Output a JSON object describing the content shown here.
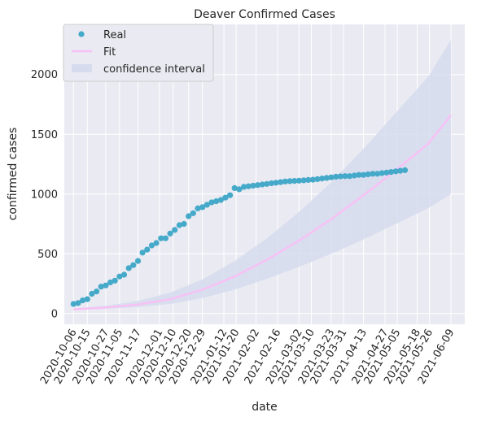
{
  "chart_data": {
    "type": "scatter",
    "title": "Deaver Confirmed Cases",
    "xlabel": "date",
    "ylabel": "confirmed cases",
    "x_ticks": [
      "2020-10-06",
      "2020-10-15",
      "2020-10-27",
      "2020-11-05",
      "2020-11-17",
      "2020-12-01",
      "2020-12-10",
      "2020-12-20",
      "2020-12-29",
      "2021-01-12",
      "2021-01-20",
      "2021-02-02",
      "2021-02-16",
      "2021-03-02",
      "2021-03-10",
      "2021-03-23",
      "2021-03-31",
      "2021-04-13",
      "2021-04-27",
      "2021-05-05",
      "2021-05-18",
      "2021-05-26",
      "2021-06-09"
    ],
    "y_ticks": [
      0,
      500,
      1000,
      1500,
      2000
    ],
    "xlim": [
      "2020-09-30",
      "2021-06-18"
    ],
    "ylim": [
      -90,
      2420
    ],
    "grid": true,
    "legend_position": "top-left",
    "colors": {
      "real": "#45a9c9",
      "fit": "#f7c1f5",
      "band": "#d6dcee",
      "background": "#eaeaf2",
      "grid": "#ffffff"
    },
    "legend": [
      "Real",
      "Fit",
      "confidence interval"
    ],
    "series": [
      {
        "name": "Real",
        "kind": "scatter",
        "points": [
          [
            "2020-10-06",
            80
          ],
          [
            "2020-10-09",
            88
          ],
          [
            "2020-10-12",
            110
          ],
          [
            "2020-10-15",
            120
          ],
          [
            "2020-10-18",
            165
          ],
          [
            "2020-10-21",
            185
          ],
          [
            "2020-10-24",
            225
          ],
          [
            "2020-10-27",
            235
          ],
          [
            "2020-10-30",
            260
          ],
          [
            "2020-11-02",
            275
          ],
          [
            "2020-11-05",
            310
          ],
          [
            "2020-11-08",
            325
          ],
          [
            "2020-11-11",
            380
          ],
          [
            "2020-11-14",
            405
          ],
          [
            "2020-11-17",
            440
          ],
          [
            "2020-11-20",
            510
          ],
          [
            "2020-11-23",
            535
          ],
          [
            "2020-11-26",
            570
          ],
          [
            "2020-11-29",
            590
          ],
          [
            "2020-12-02",
            630
          ],
          [
            "2020-12-05",
            630
          ],
          [
            "2020-12-08",
            670
          ],
          [
            "2020-12-11",
            700
          ],
          [
            "2020-12-14",
            740
          ],
          [
            "2020-12-17",
            750
          ],
          [
            "2020-12-20",
            815
          ],
          [
            "2020-12-23",
            840
          ],
          [
            "2020-12-26",
            880
          ],
          [
            "2020-12-29",
            890
          ],
          [
            "2021-01-01",
            910
          ],
          [
            "2021-01-04",
            930
          ],
          [
            "2021-01-07",
            940
          ],
          [
            "2021-01-10",
            950
          ],
          [
            "2021-01-13",
            970
          ],
          [
            "2021-01-16",
            990
          ],
          [
            "2021-01-19",
            1050
          ],
          [
            "2021-01-22",
            1040
          ],
          [
            "2021-01-25",
            1060
          ],
          [
            "2021-01-28",
            1065
          ],
          [
            "2021-01-31",
            1070
          ],
          [
            "2021-02-03",
            1075
          ],
          [
            "2021-02-06",
            1080
          ],
          [
            "2021-02-09",
            1085
          ],
          [
            "2021-02-12",
            1090
          ],
          [
            "2021-02-15",
            1095
          ],
          [
            "2021-02-18",
            1100
          ],
          [
            "2021-02-21",
            1105
          ],
          [
            "2021-02-24",
            1108
          ],
          [
            "2021-02-27",
            1110
          ],
          [
            "2021-03-02",
            1112
          ],
          [
            "2021-03-05",
            1115
          ],
          [
            "2021-03-08",
            1118
          ],
          [
            "2021-03-11",
            1120
          ],
          [
            "2021-03-14",
            1125
          ],
          [
            "2021-03-17",
            1130
          ],
          [
            "2021-03-20",
            1135
          ],
          [
            "2021-03-23",
            1140
          ],
          [
            "2021-03-26",
            1145
          ],
          [
            "2021-03-29",
            1148
          ],
          [
            "2021-04-01",
            1150
          ],
          [
            "2021-04-04",
            1150
          ],
          [
            "2021-04-07",
            1155
          ],
          [
            "2021-04-10",
            1160
          ],
          [
            "2021-04-13",
            1160
          ],
          [
            "2021-04-16",
            1165
          ],
          [
            "2021-04-19",
            1170
          ],
          [
            "2021-04-22",
            1170
          ],
          [
            "2021-04-25",
            1175
          ],
          [
            "2021-04-28",
            1180
          ],
          [
            "2021-05-01",
            1185
          ],
          [
            "2021-05-04",
            1190
          ],
          [
            "2021-05-07",
            1195
          ],
          [
            "2021-05-10",
            1200
          ]
        ]
      },
      {
        "name": "Fit",
        "kind": "line",
        "points": [
          [
            "2020-10-06",
            35
          ],
          [
            "2020-10-27",
            50
          ],
          [
            "2020-11-17",
            75
          ],
          [
            "2020-12-08",
            120
          ],
          [
            "2020-12-29",
            200
          ],
          [
            "2021-01-19",
            310
          ],
          [
            "2021-02-09",
            450
          ],
          [
            "2021-03-02",
            610
          ],
          [
            "2021-03-23",
            790
          ],
          [
            "2021-04-13",
            990
          ],
          [
            "2021-05-04",
            1200
          ],
          [
            "2021-05-25",
            1420
          ],
          [
            "2021-06-09",
            1660
          ]
        ]
      },
      {
        "name": "confidence interval",
        "kind": "band",
        "upper": [
          [
            "2020-10-06",
            40
          ],
          [
            "2020-10-27",
            65
          ],
          [
            "2020-11-17",
            105
          ],
          [
            "2020-12-08",
            175
          ],
          [
            "2020-12-29",
            285
          ],
          [
            "2021-01-19",
            440
          ],
          [
            "2021-02-09",
            630
          ],
          [
            "2021-03-02",
            850
          ],
          [
            "2021-03-23",
            1100
          ],
          [
            "2021-04-13",
            1380
          ],
          [
            "2021-05-04",
            1680
          ],
          [
            "2021-05-25",
            1980
          ],
          [
            "2021-06-09",
            2290
          ]
        ],
        "lower": [
          [
            "2020-10-06",
            30
          ],
          [
            "2020-10-27",
            40
          ],
          [
            "2020-11-17",
            55
          ],
          [
            "2020-12-08",
            80
          ],
          [
            "2020-12-29",
            130
          ],
          [
            "2021-01-19",
            200
          ],
          [
            "2021-02-09",
            290
          ],
          [
            "2021-03-02",
            390
          ],
          [
            "2021-03-23",
            500
          ],
          [
            "2021-04-13",
            620
          ],
          [
            "2021-05-04",
            750
          ],
          [
            "2021-05-25",
            880
          ],
          [
            "2021-06-09",
            1000
          ]
        ]
      }
    ]
  }
}
